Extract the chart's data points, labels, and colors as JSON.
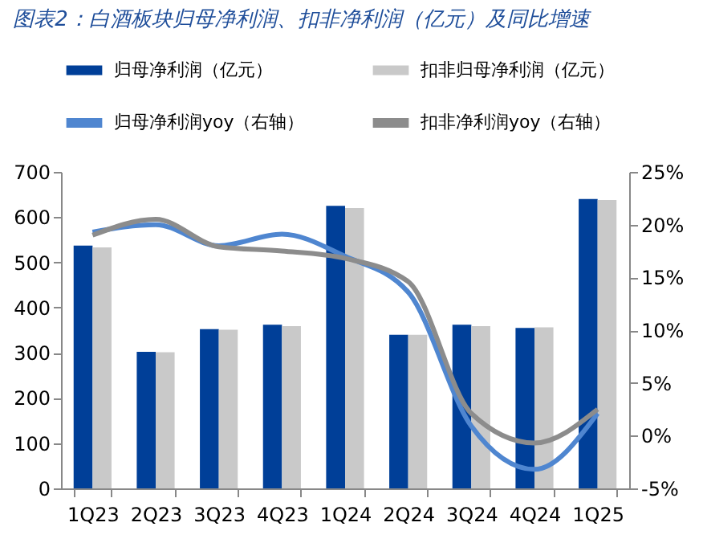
{
  "chart_data": {
    "type": "bar",
    "title": "图表2：白酒板块归母净利润、扣非净利润（亿元）及同比增速",
    "categories": [
      "1Q23",
      "2Q23",
      "3Q23",
      "4Q23",
      "1Q24",
      "2Q24",
      "3Q24",
      "4Q24",
      "1Q25"
    ],
    "series": [
      {
        "name": "归母净利润（亿元）",
        "color": "#003f98",
        "values": [
          537,
          302,
          352,
          362,
          625,
          340,
          362,
          355,
          640
        ]
      },
      {
        "name": "扣非归母净利润（亿元）",
        "color": "#c9c9c9",
        "values": [
          533,
          301,
          351,
          359,
          620,
          340,
          359,
          356,
          638
        ]
      },
      {
        "name": "归母净利润yoy（右轴）",
        "type": "line",
        "axis": "y2",
        "color": "#4f86d0",
        "values": [
          19.3,
          20.0,
          18.0,
          19.1,
          17.0,
          13.6,
          0.9,
          -3.2,
          2.1
        ]
      },
      {
        "name": "扣非净利润yoy（右轴）",
        "type": "line",
        "axis": "y2",
        "color": "#8c8c8c",
        "values": [
          19.0,
          20.5,
          17.9,
          17.5,
          16.8,
          14.6,
          2.1,
          -0.7,
          2.5
        ]
      }
    ],
    "ylim": [
      0,
      700
    ],
    "yticks": [
      0,
      100,
      200,
      300,
      400,
      500,
      600,
      700
    ],
    "y2lim": [
      -5,
      25
    ],
    "y2ticks": [
      {
        "value": -5,
        "label": "-5%"
      },
      {
        "value": 0,
        "label": "0%"
      },
      {
        "value": 5,
        "label": "5%"
      },
      {
        "value": 10,
        "label": "10%"
      },
      {
        "value": 15,
        "label": "15%"
      },
      {
        "value": 20,
        "label": "20%"
      },
      {
        "value": 25,
        "label": "25%"
      }
    ],
    "legend": "top",
    "grid": false
  }
}
